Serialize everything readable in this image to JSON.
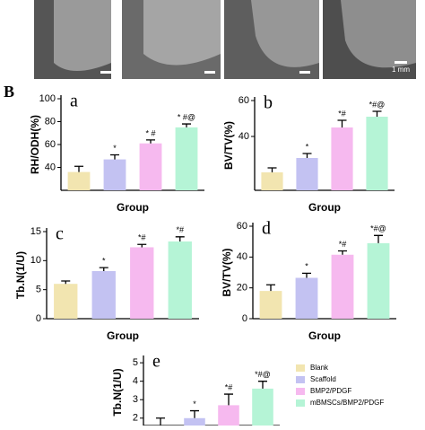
{
  "figure_label": "B",
  "scale_label": "1 mm",
  "legend": {
    "labels": [
      "Blank",
      "Scaffold",
      "BMP2/PDGF",
      "mBMSCs/BMP2/PDGF"
    ],
    "colors": [
      "#f2e5b0",
      "#c3c2f2",
      "#f6b9ef",
      "#b5f4d6"
    ]
  },
  "chart_data": [
    {
      "type": "bar",
      "panel": "a",
      "ylabel": "RH/ODH(%)",
      "xlabel": "Group",
      "values": [
        36,
        47,
        61,
        75
      ],
      "errors": [
        5,
        4,
        3,
        3
      ],
      "annotations": [
        null,
        "*",
        "* #",
        "* #@"
      ],
      "ylim": [
        20,
        100
      ],
      "yticks": [
        40,
        60,
        80,
        100
      ]
    },
    {
      "type": "bar",
      "panel": "b",
      "ylabel": "BV/TV(%)",
      "xlabel": "Group",
      "values": [
        20,
        28,
        45,
        51
      ],
      "errors": [
        2.5,
        2.5,
        4,
        3
      ],
      "annotations": [
        null,
        "*",
        "*#",
        "*#@"
      ],
      "ylim": [
        10,
        60
      ],
      "yticks": [
        40,
        60
      ]
    },
    {
      "type": "bar",
      "panel": "c",
      "ylabel": "Tb.N(1/U)",
      "xlabel": "Group",
      "values": [
        6,
        8.2,
        12.3,
        13.3
      ],
      "errors": [
        0.5,
        0.6,
        0.5,
        0.8
      ],
      "annotations": [
        null,
        "*",
        "*#",
        "*#"
      ],
      "ylim": [
        0,
        15
      ],
      "yticks": [
        0,
        5,
        10,
        15
      ]
    },
    {
      "type": "bar",
      "panel": "d",
      "ylabel": "BV/TV(%)",
      "xlabel": "Group",
      "values": [
        18,
        26.5,
        41.5,
        49
      ],
      "errors": [
        4,
        3,
        2.5,
        5
      ],
      "annotations": [
        null,
        "*",
        "*#",
        "*#@"
      ],
      "ylim": [
        0,
        60
      ],
      "yticks": [
        0,
        20,
        40,
        60
      ]
    },
    {
      "type": "bar",
      "panel": "e",
      "ylabel": "Tb.N(1/U)",
      "values": [
        1.6,
        2.0,
        2.7,
        3.6
      ],
      "errors": [
        0.4,
        0.4,
        0.6,
        0.4
      ],
      "annotations": [
        null,
        "*",
        "*#",
        "*#@"
      ],
      "ylim": [
        1.6,
        5.2
      ],
      "yticks": [
        2,
        3,
        4,
        5
      ]
    }
  ]
}
